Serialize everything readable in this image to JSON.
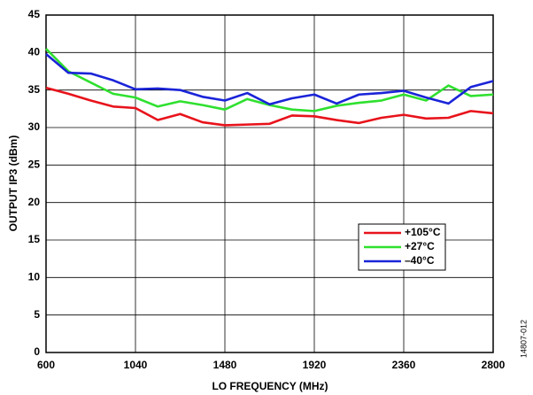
{
  "chart_data": {
    "type": "line",
    "x_label": "LO FREQUENCY (MHz)",
    "y_label": "OUTPUT IP3 (dBm)",
    "figure_id": "14807-012",
    "x": [
      600,
      710,
      820,
      930,
      1040,
      1150,
      1260,
      1370,
      1480,
      1590,
      1700,
      1810,
      1920,
      2030,
      2140,
      2250,
      2360,
      2470,
      2580,
      2690,
      2800
    ],
    "series": [
      {
        "name": "+105°C",
        "color": "#e8131b",
        "values": [
          35.3,
          34.5,
          33.6,
          32.8,
          32.6,
          31.0,
          31.8,
          30.7,
          30.3,
          30.4,
          30.5,
          31.6,
          31.5,
          31.0,
          30.6,
          31.3,
          31.7,
          31.2,
          31.3,
          32.2,
          31.9
        ]
      },
      {
        "name": "+27°C",
        "color": "#2fe02f",
        "values": [
          40.5,
          37.5,
          36.0,
          34.5,
          34.0,
          32.8,
          33.5,
          33.0,
          32.4,
          33.8,
          33.0,
          32.4,
          32.2,
          32.9,
          33.3,
          33.6,
          34.4,
          33.6,
          35.6,
          34.2,
          34.4
        ]
      },
      {
        "name": "–40°C",
        "color": "#1a24d8",
        "values": [
          39.8,
          37.3,
          37.2,
          36.3,
          35.1,
          35.2,
          35.0,
          34.1,
          33.6,
          34.6,
          33.1,
          33.9,
          34.4,
          33.2,
          34.4,
          34.6,
          34.9,
          34.0,
          33.2,
          35.4,
          36.2
        ]
      }
    ],
    "xlim": [
      600,
      2800
    ],
    "xticks": [
      600,
      1040,
      1480,
      1920,
      2360,
      2800
    ],
    "ylim": [
      0,
      45
    ],
    "yticks": [
      0,
      5,
      10,
      15,
      20,
      25,
      30,
      35,
      40,
      45
    ],
    "grid": true,
    "legend": "lower-right"
  }
}
